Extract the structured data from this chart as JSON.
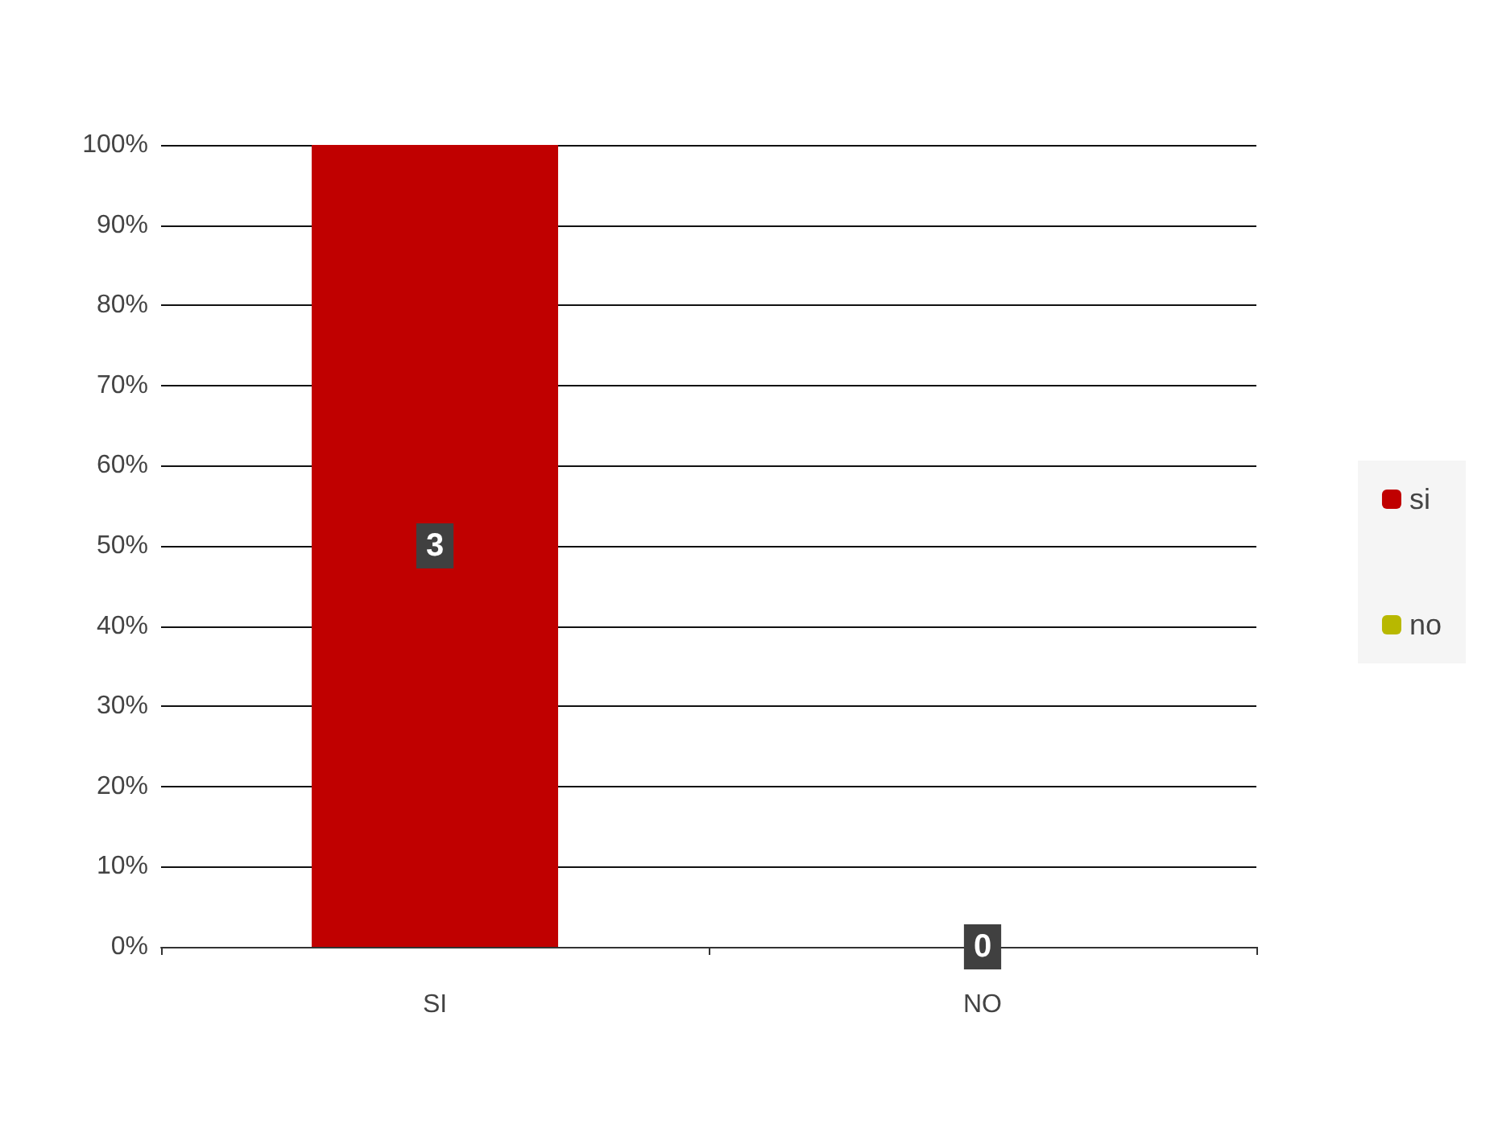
{
  "chart_data": {
    "type": "bar",
    "categories": [
      "SI",
      "NO"
    ],
    "series": [
      {
        "name": "si",
        "color": "#c00000",
        "values": [
          100,
          null
        ]
      },
      {
        "name": "no",
        "color": "#b8b800",
        "values": [
          null,
          0
        ]
      }
    ],
    "annotations": [
      {
        "text": "3",
        "x": "SI",
        "y": 50
      },
      {
        "text": "0",
        "x": "NO",
        "y": 0
      }
    ],
    "ylim": [
      0,
      100
    ],
    "yticks": [
      {
        "value": 0,
        "label": "0%"
      },
      {
        "value": 10,
        "label": "10%"
      },
      {
        "value": 20,
        "label": "20%"
      },
      {
        "value": 30,
        "label": "30%"
      },
      {
        "value": 40,
        "label": "40%"
      },
      {
        "value": 50,
        "label": "50%"
      },
      {
        "value": 60,
        "label": "60%"
      },
      {
        "value": 70,
        "label": "70%"
      },
      {
        "value": 80,
        "label": "80%"
      },
      {
        "value": 90,
        "label": "90%"
      },
      {
        "value": 100,
        "label": "100%"
      }
    ],
    "grid": "y",
    "legend": "right"
  }
}
